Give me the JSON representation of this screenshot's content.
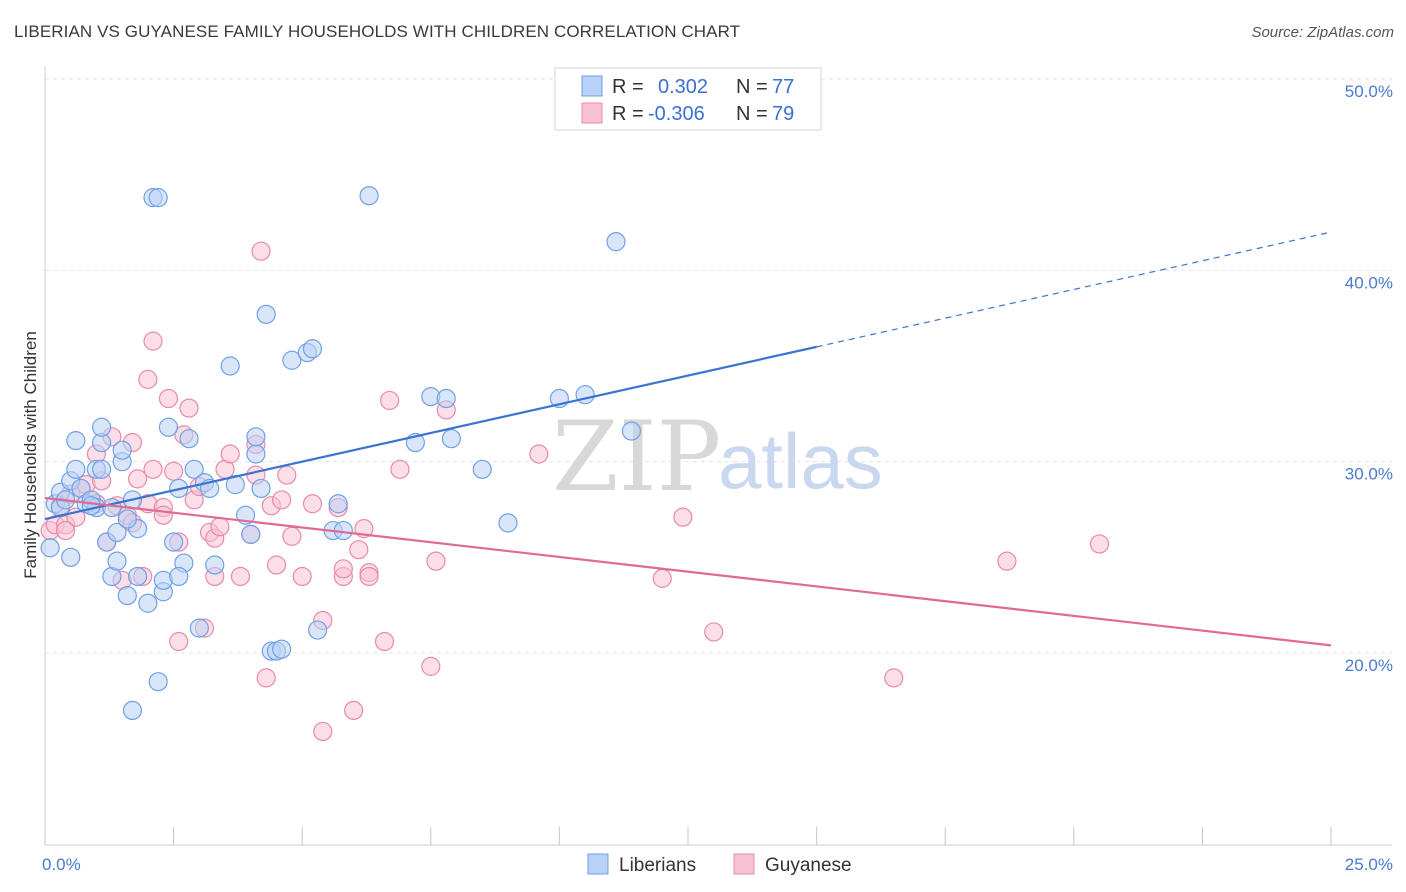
{
  "title": "LIBERIAN VS GUYANESE FAMILY HOUSEHOLDS WITH CHILDREN CORRELATION CHART",
  "source": "Source: ZipAtlas.com",
  "watermark": {
    "zip": "ZIP",
    "atlas": "atlas"
  },
  "colors": {
    "blue": "#6fa0e6",
    "blue_fill": "#b9d1f5",
    "blue_line": "#3a74cf",
    "pink": "#e98aa9",
    "pink_fill": "#f7c3d3",
    "pink_line": "#e06a94",
    "grid": "#e3e3e3"
  },
  "legend": {
    "series1": {
      "r_label": "R =",
      "r_value": "0.302",
      "n_label": "N =",
      "n_value": "77"
    },
    "series2": {
      "r_label": "R =",
      "r_value": "-0.306",
      "n_label": "N =",
      "n_value": "79"
    }
  },
  "bottom_legend": {
    "liberians": "Liberians",
    "guyanese": "Guyanese"
  },
  "chart_data": {
    "type": "scatter",
    "title": "LIBERIAN VS GUYANESE FAMILY HOUSEHOLDS WITH CHILDREN CORRELATION CHART",
    "xlabel": "",
    "ylabel": "Family Households with Children",
    "xlim": [
      0,
      25
    ],
    "ylim": [
      11,
      52
    ],
    "x_tick_labels": [
      "0.0%",
      "25.0%"
    ],
    "y_ticks": [
      20,
      30,
      40,
      50
    ],
    "y_tick_labels": [
      "20.0%",
      "30.0%",
      "40.0%",
      "50.0%"
    ],
    "grid": true,
    "series": [
      {
        "name": "Liberians",
        "r": 0.302,
        "n": 77,
        "trend": {
          "x0": 0,
          "y0": 27.0,
          "x1": 15,
          "y1": 36.0,
          "dashed_to_x": 25,
          "dashed_to_y": 42.0
        },
        "points": [
          [
            0.1,
            25.5
          ],
          [
            0.2,
            27.8
          ],
          [
            0.3,
            28.4
          ],
          [
            0.3,
            27.6
          ],
          [
            0.4,
            28.0
          ],
          [
            0.5,
            29.0
          ],
          [
            0.5,
            25.0
          ],
          [
            0.6,
            29.6
          ],
          [
            0.6,
            31.1
          ],
          [
            0.7,
            28.6
          ],
          [
            0.8,
            27.8
          ],
          [
            0.9,
            28.0
          ],
          [
            1.0,
            27.6
          ],
          [
            1.0,
            29.6
          ],
          [
            1.1,
            31.0
          ],
          [
            1.1,
            31.8
          ],
          [
            1.1,
            29.6
          ],
          [
            1.2,
            25.8
          ],
          [
            1.3,
            27.6
          ],
          [
            1.3,
            24.0
          ],
          [
            1.4,
            26.3
          ],
          [
            1.4,
            24.8
          ],
          [
            1.5,
            30.0
          ],
          [
            1.5,
            30.6
          ],
          [
            1.6,
            23.0
          ],
          [
            1.7,
            28.0
          ],
          [
            1.8,
            26.5
          ],
          [
            1.8,
            24.0
          ],
          [
            2.0,
            22.6
          ],
          [
            2.1,
            43.8
          ],
          [
            2.2,
            43.8
          ],
          [
            2.2,
            18.5
          ],
          [
            2.3,
            23.2
          ],
          [
            2.3,
            23.8
          ],
          [
            2.4,
            31.8
          ],
          [
            2.5,
            25.8
          ],
          [
            2.6,
            28.6
          ],
          [
            2.7,
            24.7
          ],
          [
            2.8,
            31.2
          ],
          [
            2.9,
            29.6
          ],
          [
            3.0,
            21.3
          ],
          [
            3.1,
            28.9
          ],
          [
            3.2,
            28.6
          ],
          [
            3.3,
            24.6
          ],
          [
            3.6,
            35.0
          ],
          [
            3.7,
            28.8
          ],
          [
            3.9,
            27.2
          ],
          [
            4.0,
            26.2
          ],
          [
            4.1,
            30.4
          ],
          [
            4.1,
            31.3
          ],
          [
            4.2,
            28.6
          ],
          [
            4.3,
            37.7
          ],
          [
            4.4,
            20.1
          ],
          [
            4.5,
            20.1
          ],
          [
            4.6,
            20.2
          ],
          [
            4.8,
            35.3
          ],
          [
            5.1,
            35.7
          ],
          [
            5.2,
            35.9
          ],
          [
            5.3,
            21.2
          ],
          [
            5.6,
            26.4
          ],
          [
            5.7,
            27.8
          ],
          [
            5.8,
            26.4
          ],
          [
            6.3,
            43.9
          ],
          [
            7.2,
            31.0
          ],
          [
            7.5,
            33.4
          ],
          [
            7.8,
            33.3
          ],
          [
            7.9,
            31.2
          ],
          [
            8.5,
            29.6
          ],
          [
            9.0,
            26.8
          ],
          [
            10.0,
            33.3
          ],
          [
            10.5,
            33.5
          ],
          [
            11.1,
            41.5
          ],
          [
            11.4,
            31.6
          ],
          [
            1.7,
            17.0
          ],
          [
            2.6,
            24.0
          ],
          [
            0.9,
            27.7
          ],
          [
            1.6,
            27.0
          ]
        ]
      },
      {
        "name": "Guyanese",
        "r": -0.306,
        "n": 79,
        "trend": {
          "x0": 0,
          "y0": 28.1,
          "x1": 25,
          "y1": 20.4
        },
        "points": [
          [
            0.1,
            26.4
          ],
          [
            0.2,
            26.7
          ],
          [
            0.3,
            27.7
          ],
          [
            0.4,
            26.7
          ],
          [
            0.5,
            28.3
          ],
          [
            0.6,
            27.1
          ],
          [
            0.7,
            28.6
          ],
          [
            0.8,
            28.8
          ],
          [
            0.9,
            28.0
          ],
          [
            1.0,
            27.8
          ],
          [
            1.0,
            30.4
          ],
          [
            1.1,
            29.0
          ],
          [
            1.2,
            25.8
          ],
          [
            1.3,
            31.3
          ],
          [
            1.4,
            27.7
          ],
          [
            1.5,
            23.8
          ],
          [
            1.6,
            27.2
          ],
          [
            1.7,
            26.8
          ],
          [
            1.7,
            31.0
          ],
          [
            1.8,
            29.1
          ],
          [
            1.9,
            24.0
          ],
          [
            2.0,
            34.3
          ],
          [
            2.0,
            27.8
          ],
          [
            2.1,
            36.3
          ],
          [
            2.1,
            29.6
          ],
          [
            2.3,
            27.6
          ],
          [
            2.3,
            27.2
          ],
          [
            2.4,
            33.3
          ],
          [
            2.5,
            29.5
          ],
          [
            2.6,
            25.8
          ],
          [
            2.6,
            20.6
          ],
          [
            2.7,
            31.4
          ],
          [
            2.8,
            32.8
          ],
          [
            2.9,
            28.0
          ],
          [
            3.0,
            28.7
          ],
          [
            3.1,
            21.3
          ],
          [
            3.2,
            26.3
          ],
          [
            3.3,
            24.0
          ],
          [
            3.3,
            26.0
          ],
          [
            3.4,
            26.6
          ],
          [
            3.5,
            29.6
          ],
          [
            3.6,
            30.4
          ],
          [
            3.8,
            24.0
          ],
          [
            4.0,
            26.2
          ],
          [
            4.1,
            29.3
          ],
          [
            4.1,
            30.9
          ],
          [
            4.2,
            41.0
          ],
          [
            4.3,
            18.7
          ],
          [
            4.4,
            27.7
          ],
          [
            4.5,
            24.6
          ],
          [
            4.6,
            28.0
          ],
          [
            4.7,
            29.3
          ],
          [
            4.8,
            26.1
          ],
          [
            5.0,
            24.0
          ],
          [
            5.2,
            27.8
          ],
          [
            5.4,
            21.7
          ],
          [
            5.4,
            15.9
          ],
          [
            5.7,
            27.6
          ],
          [
            5.8,
            24.0
          ],
          [
            6.0,
            17.0
          ],
          [
            6.1,
            25.4
          ],
          [
            6.2,
            26.5
          ],
          [
            6.3,
            24.2
          ],
          [
            6.3,
            24.0
          ],
          [
            6.6,
            20.6
          ],
          [
            6.7,
            33.2
          ],
          [
            6.9,
            29.6
          ],
          [
            7.5,
            19.3
          ],
          [
            7.6,
            24.8
          ],
          [
            7.8,
            32.7
          ],
          [
            9.6,
            30.4
          ],
          [
            12.0,
            23.9
          ],
          [
            12.4,
            27.1
          ],
          [
            13.0,
            21.1
          ],
          [
            16.5,
            18.7
          ],
          [
            18.7,
            24.8
          ],
          [
            20.5,
            25.7
          ],
          [
            5.8,
            24.4
          ],
          [
            0.4,
            26.4
          ]
        ]
      }
    ]
  }
}
